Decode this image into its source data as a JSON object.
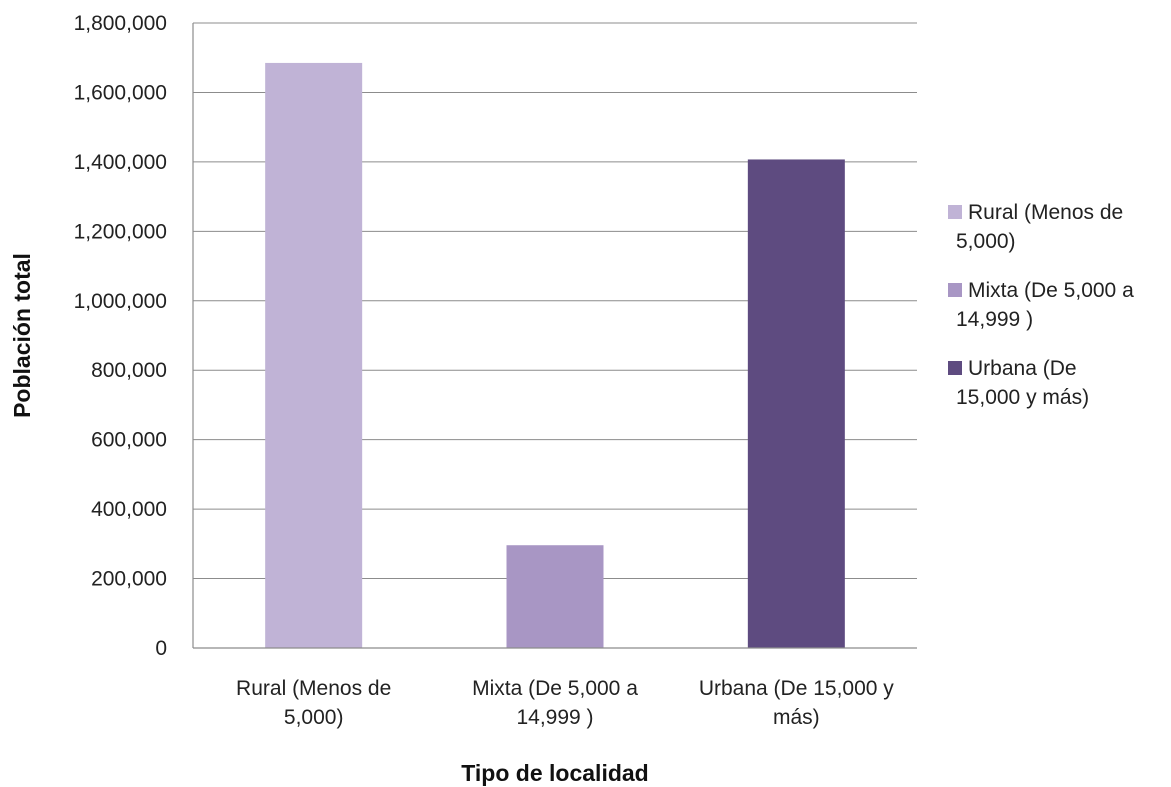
{
  "chart_data": {
    "type": "bar",
    "categories": [
      [
        "Rural (Menos de",
        "5,000)"
      ],
      [
        "Mixta (De 5,000 a",
        "14,999 )"
      ],
      [
        "Urbana (De 15,000 y",
        "más)"
      ]
    ],
    "values": [
      1685000,
      296000,
      1407000
    ],
    "colors": [
      "#c0b3d6",
      "#a896c4",
      "#5e4b80"
    ],
    "xlabel": "Tipo de localidad",
    "ylabel": "Población total",
    "ylim": [
      0,
      1800000
    ],
    "yticks": [
      0,
      200000,
      400000,
      600000,
      800000,
      1000000,
      1200000,
      1400000,
      1600000,
      1800000
    ],
    "ytick_labels": [
      "0",
      "200,000",
      "400,000",
      "600,000",
      "800,000",
      "1,000,000",
      "1,200,000",
      "1,400,000",
      "1,600,000",
      "1,800,000"
    ],
    "grid": true,
    "legend_position": "right",
    "legend": [
      [
        "Rural (Menos de",
        "5,000)"
      ],
      [
        "Mixta (De 5,000 a",
        "14,999 )"
      ],
      [
        "Urbana (De",
        "15,000 y más)"
      ]
    ]
  }
}
